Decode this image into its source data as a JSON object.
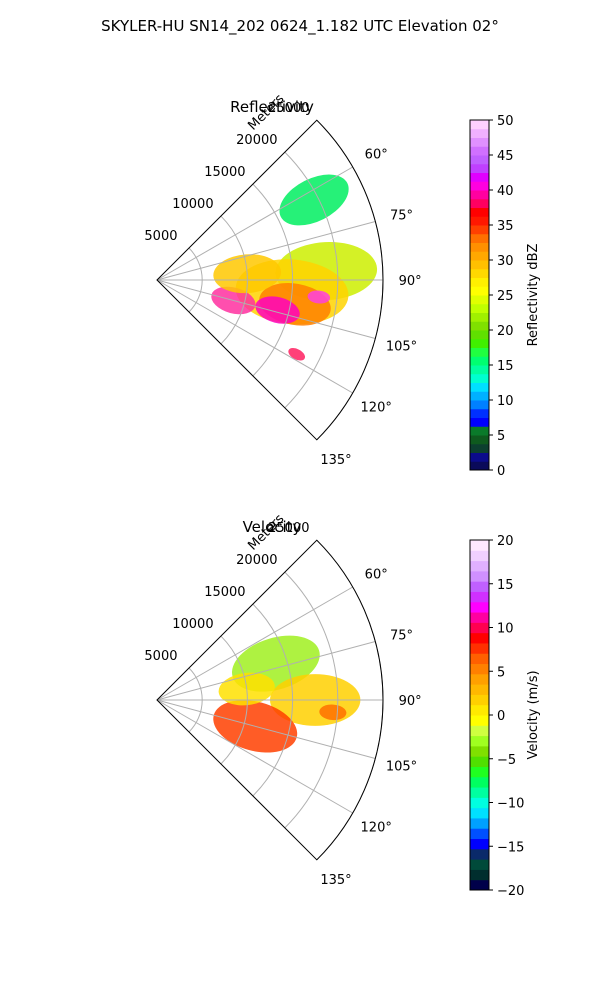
{
  "suptitle": "SKYLER-HU  SN14_202  0624_1.182 UTC Elevation 02°",
  "chart_data": [
    {
      "type": "heatmap",
      "projection": "polar-sector",
      "title": "Reflectivity",
      "radial_label": "Meters",
      "radial_ticks": [
        5000,
        10000,
        15000,
        20000,
        25000
      ],
      "radial_tick_labels": [
        "5000",
        "10000",
        "15000",
        "20000",
        "25000"
      ],
      "radial_range": [
        0,
        25000
      ],
      "azimuth_range_deg": [
        45,
        135
      ],
      "azimuth_ticks_deg": [
        60,
        75,
        90,
        105,
        120,
        135
      ],
      "azimuth_tick_labels": [
        "60°",
        "75°",
        "90°",
        "105°",
        "120°",
        "135°"
      ],
      "grid": true,
      "colorbar": {
        "label": "Reflectivity dBZ",
        "range": [
          0,
          50
        ],
        "ticks": [
          0,
          5,
          10,
          15,
          20,
          25,
          30,
          35,
          40,
          45,
          50
        ],
        "tick_labels": [
          "0",
          "5",
          "10",
          "15",
          "20",
          "25",
          "30",
          "35",
          "40",
          "45",
          "50"
        ],
        "colormap": "pyart_NWSRef"
      }
    },
    {
      "type": "heatmap",
      "projection": "polar-sector",
      "title": "Velocity",
      "radial_label": "Meters",
      "radial_ticks": [
        5000,
        10000,
        15000,
        20000,
        25000
      ],
      "radial_tick_labels": [
        "5000",
        "10000",
        "15000",
        "20000",
        "25000"
      ],
      "radial_range": [
        0,
        25000
      ],
      "azimuth_range_deg": [
        45,
        135
      ],
      "azimuth_ticks_deg": [
        60,
        75,
        90,
        105,
        120,
        135
      ],
      "azimuth_tick_labels": [
        "60°",
        "75°",
        "90°",
        "105°",
        "120°",
        "135°"
      ],
      "grid": true,
      "colorbar": {
        "label": "Velocity (m/s)",
        "range": [
          -20,
          20
        ],
        "ticks": [
          -20,
          -15,
          -10,
          -5,
          0,
          5,
          10,
          15,
          20
        ],
        "tick_labels": [
          "−20",
          "−15",
          "−10",
          "−5",
          "0",
          "5",
          "10",
          "15",
          "20"
        ],
        "colormap": "pyart_NWSVel"
      }
    }
  ]
}
